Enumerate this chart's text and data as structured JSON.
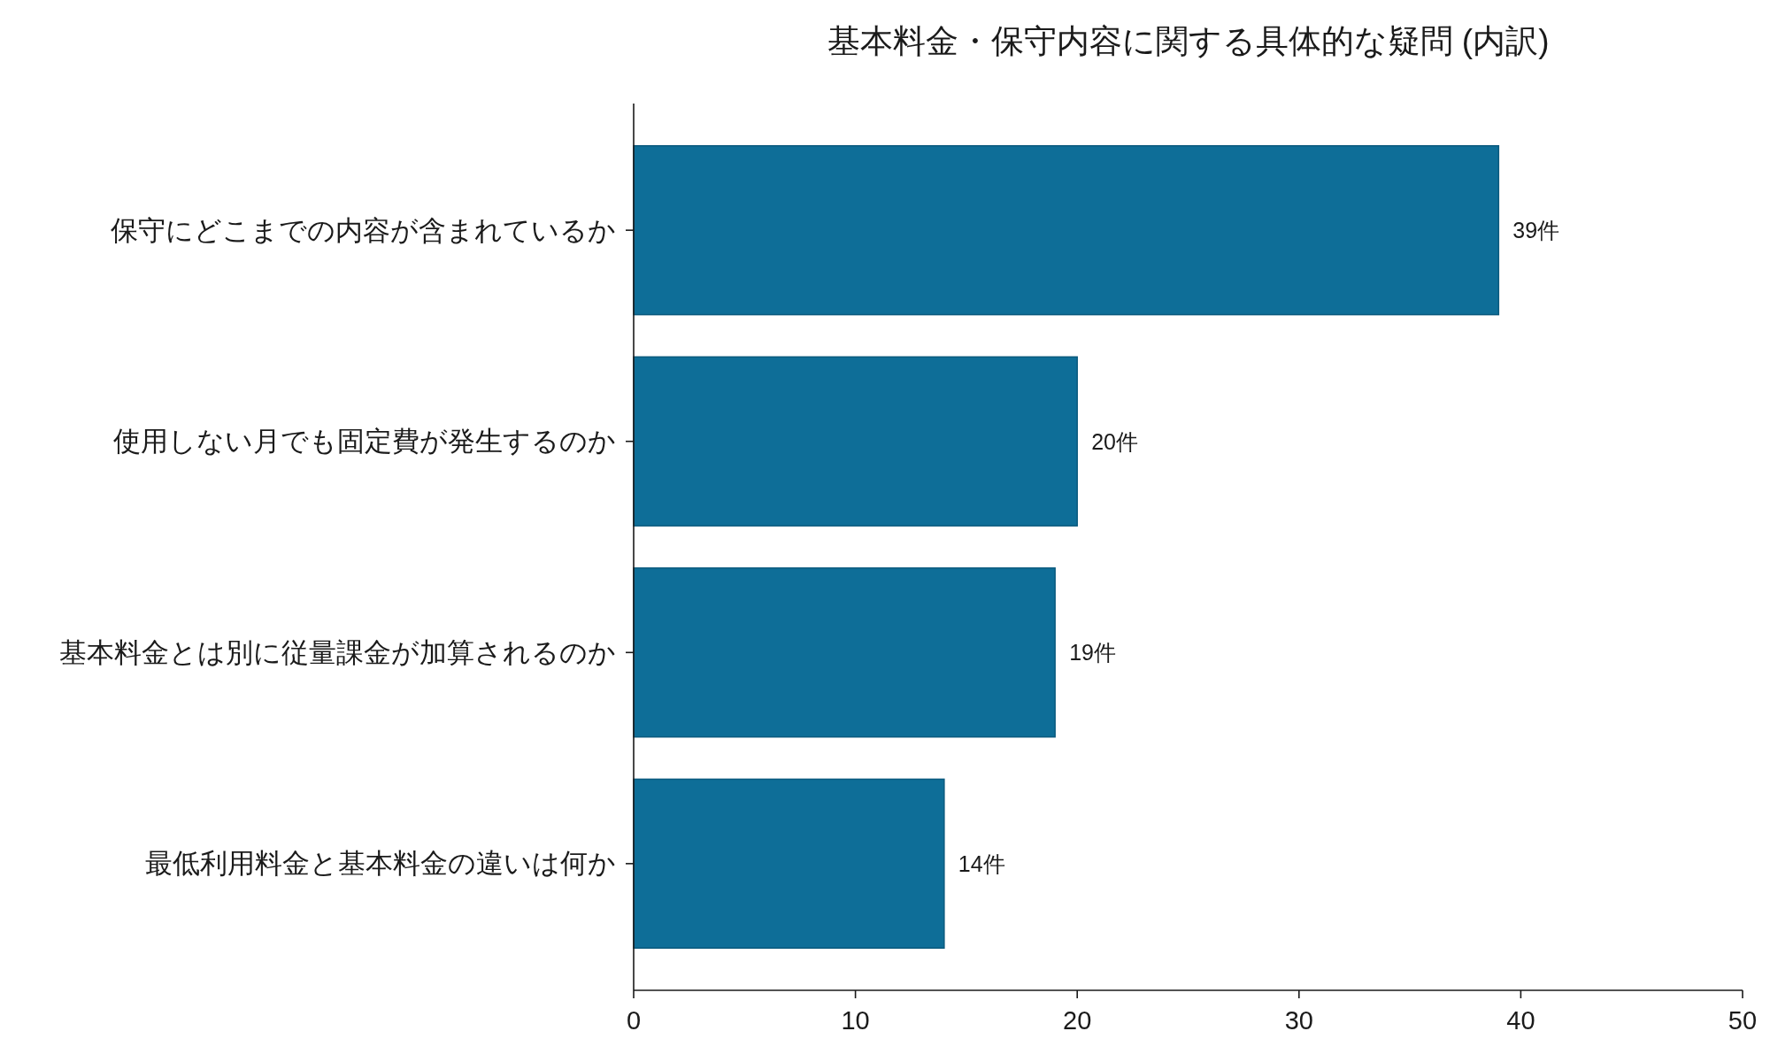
{
  "chart_data": {
    "type": "bar",
    "orientation": "horizontal",
    "title": "基本料金・保守内容に関する具体的な疑問 (内訳)",
    "categories": [
      "保守にどこまでの内容が含まれているか",
      "使用しない月でも固定費が発生するのか",
      "基本料金とは別に従量課金が加算されるのか",
      "最低利用料金と基本料金の違いは何か"
    ],
    "values": [
      39,
      20,
      19,
      14
    ],
    "value_labels": [
      "39件",
      "20件",
      "19件",
      "14件"
    ],
    "color": "#0e6e98",
    "xlim": [
      0,
      50
    ],
    "xticks": [
      0,
      10,
      20,
      30,
      40,
      50
    ]
  }
}
